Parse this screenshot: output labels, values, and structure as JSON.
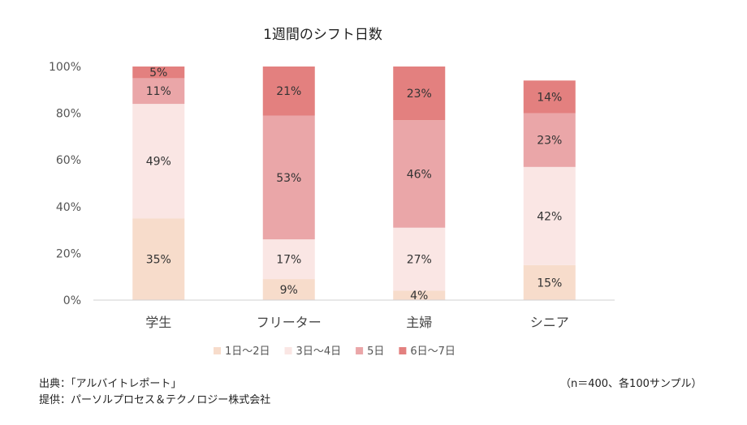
{
  "chart_data": {
    "type": "bar",
    "stacked": true,
    "title": "1週間のシフト日数",
    "categories": [
      "学生",
      "フリーター",
      "主婦",
      "シニア"
    ],
    "series": [
      {
        "name": "1日～2日",
        "color": "#f7dccb",
        "values": [
          35,
          9,
          4,
          15
        ]
      },
      {
        "name": "3日～4日",
        "color": "#fae6e4",
        "values": [
          49,
          17,
          27,
          42
        ]
      },
      {
        "name": "5日",
        "color": "#eaa6a8",
        "values": [
          11,
          53,
          46,
          23
        ]
      },
      {
        "name": "6日～7日",
        "color": "#e3807f",
        "values": [
          5,
          21,
          23,
          14
        ]
      }
    ],
    "value_labels": [
      [
        "35%",
        "9%",
        "4%",
        "15%"
      ],
      [
        "49%",
        "17%",
        "27%",
        "42%"
      ],
      [
        "11%",
        "53%",
        "46%",
        "23%"
      ],
      [
        "5%",
        "21%",
        "23%",
        "14%"
      ]
    ],
    "ylim": [
      0,
      100
    ],
    "yticks": [
      0,
      20,
      40,
      60,
      80,
      100
    ],
    "ytick_labels": [
      "0%",
      "20%",
      "40%",
      "60%",
      "80%",
      "100%"
    ],
    "grid": false,
    "legend_position": "bottom"
  },
  "footer": {
    "source": "出典：「アルバイトレポート」",
    "provider": "提供：パーソルプロセス＆テクノロジー株式会社",
    "sample_note": "（n＝400、各100サンプル）"
  }
}
